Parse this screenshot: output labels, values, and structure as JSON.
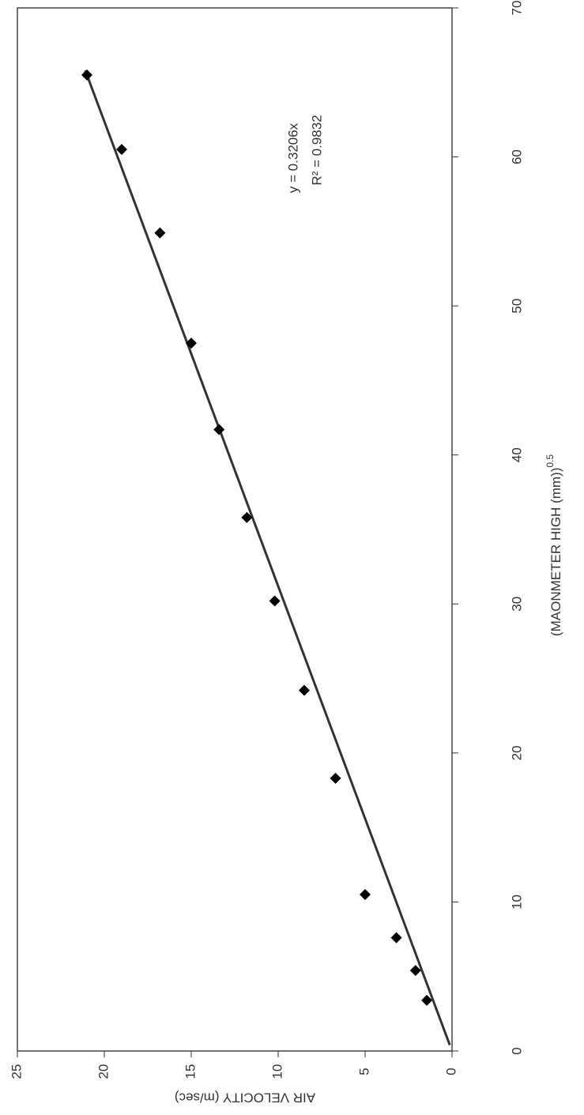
{
  "chart_data": {
    "type": "scatter",
    "xlabel": "(MAONMETER HIGH (mm))",
    "xlabel_exponent": "0.5",
    "ylabel": "AIR VELOCITY  (m/sec)",
    "x": [
      3.4,
      5.4,
      7.6,
      10.5,
      18.3,
      24.2,
      30.2,
      35.8,
      41.7,
      47.5,
      54.9,
      60.5,
      65.5
    ],
    "values": [
      1.45,
      2.1,
      3.2,
      5.0,
      6.7,
      8.5,
      10.2,
      11.8,
      13.4,
      15.0,
      16.8,
      19.0,
      21.0
    ],
    "color": "#000000",
    "trendline": {
      "slope": 0.3206,
      "label": "y = 0.3206x",
      "r2_label": "R² = 0.9832"
    },
    "xlim": [
      0,
      70
    ],
    "xticks": [
      0,
      10,
      20,
      30,
      40,
      50,
      60,
      70
    ],
    "ylim": [
      0,
      25
    ],
    "yticks": [
      0,
      5,
      10,
      15,
      20,
      25
    ]
  }
}
